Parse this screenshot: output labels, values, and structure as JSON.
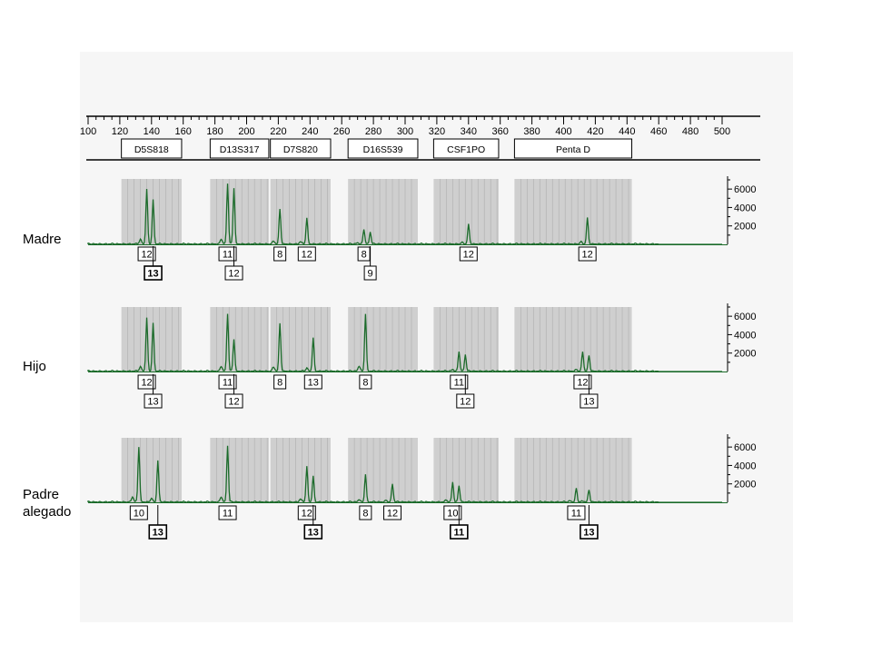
{
  "chart_data": {
    "type": "line",
    "x_axis": {
      "range": [
        100,
        500
      ],
      "tick_labels": [
        "100",
        "120",
        "140",
        "160",
        "180",
        "200",
        "220",
        "240",
        "260",
        "280",
        "300",
        "320",
        "340",
        "360",
        "380",
        "400",
        "420",
        "440",
        "460",
        "480",
        "500"
      ]
    },
    "y_axis": {
      "range": [
        0,
        7000
      ],
      "tick_labels": [
        "6000",
        "4000",
        "2000"
      ]
    },
    "loci": [
      {
        "name": "D5S818",
        "range": [
          121,
          159
        ]
      },
      {
        "name": "D13S317",
        "range": [
          177,
          214
        ]
      },
      {
        "name": "D7S820",
        "range": [
          215,
          253
        ]
      },
      {
        "name": "D16S539",
        "range": [
          264,
          308
        ]
      },
      {
        "name": "CSF1PO",
        "range": [
          318,
          359
        ]
      },
      {
        "name": "Penta D",
        "range": [
          369,
          443
        ]
      }
    ],
    "series": [
      {
        "name": "Madre",
        "peaks": [
          {
            "x": 137,
            "height": 5500,
            "allele": "12",
            "row": 1
          },
          {
            "x": 141,
            "height": 4800,
            "allele": "13",
            "row": 2
          },
          {
            "x": 188,
            "height": 6000,
            "allele": "11",
            "row": 1
          },
          {
            "x": 192,
            "height": 6100,
            "allele": "12",
            "row": 2
          },
          {
            "x": 221,
            "height": 3800,
            "allele": "8",
            "row": 1
          },
          {
            "x": 238,
            "height": 2800,
            "allele": "12",
            "row": 1
          },
          {
            "x": 274,
            "height": 1500,
            "allele": "8",
            "row": 1
          },
          {
            "x": 278,
            "height": 1300,
            "allele": "9",
            "row": 2
          },
          {
            "x": 340,
            "height": 2100,
            "allele": "12",
            "row": 1
          },
          {
            "x": 415,
            "height": 2800,
            "allele": "12",
            "row": 1
          }
        ]
      },
      {
        "name": "Hijo",
        "peaks": [
          {
            "x": 137,
            "height": 5300,
            "allele": "12",
            "row": 1
          },
          {
            "x": 141,
            "height": 5200,
            "allele": "13",
            "row": 2
          },
          {
            "x": 188,
            "height": 5900,
            "allele": "11",
            "row": 1
          },
          {
            "x": 192,
            "height": 3500,
            "allele": "12",
            "row": 2
          },
          {
            "x": 221,
            "height": 5200,
            "allele": "8",
            "row": 1
          },
          {
            "x": 242,
            "height": 3600,
            "allele": "13",
            "row": 1
          },
          {
            "x": 275,
            "height": 6200,
            "allele": "8",
            "row": 1
          },
          {
            "x": 334,
            "height": 2000,
            "allele": "11",
            "row": 1
          },
          {
            "x": 338,
            "height": 1800,
            "allele": "12",
            "row": 2
          },
          {
            "x": 412,
            "height": 2000,
            "allele": "12",
            "row": 1
          },
          {
            "x": 416,
            "height": 1700,
            "allele": "13",
            "row": 2
          }
        ]
      },
      {
        "name": "Padre\nalegado",
        "peaks": [
          {
            "x": 132,
            "height": 6000,
            "allele": "10",
            "row": 1
          },
          {
            "x": 144,
            "height": 4500,
            "allele": "13",
            "row": 2
          },
          {
            "x": 188,
            "height": 6100,
            "allele": "11",
            "row": 1
          },
          {
            "x": 238,
            "height": 3600,
            "allele": "12",
            "row": 1
          },
          {
            "x": 242,
            "height": 2800,
            "allele": "13",
            "row": 2
          },
          {
            "x": 275,
            "height": 3000,
            "allele": "8",
            "row": 1
          },
          {
            "x": 292,
            "height": 2000,
            "allele": "12",
            "row": 1
          },
          {
            "x": 330,
            "height": 2000,
            "allele": "10",
            "row": 1
          },
          {
            "x": 334,
            "height": 1800,
            "allele": "11",
            "row": 2
          },
          {
            "x": 408,
            "height": 1500,
            "allele": "11",
            "row": 1
          },
          {
            "x": 416,
            "height": 1300,
            "allele": "13",
            "row": 2
          }
        ]
      }
    ]
  },
  "colors": {
    "trace": "#1b6b2a",
    "bin": "#cfcfcf",
    "bin_line": "#b6b6b6",
    "panel": "#f6f6f6"
  }
}
